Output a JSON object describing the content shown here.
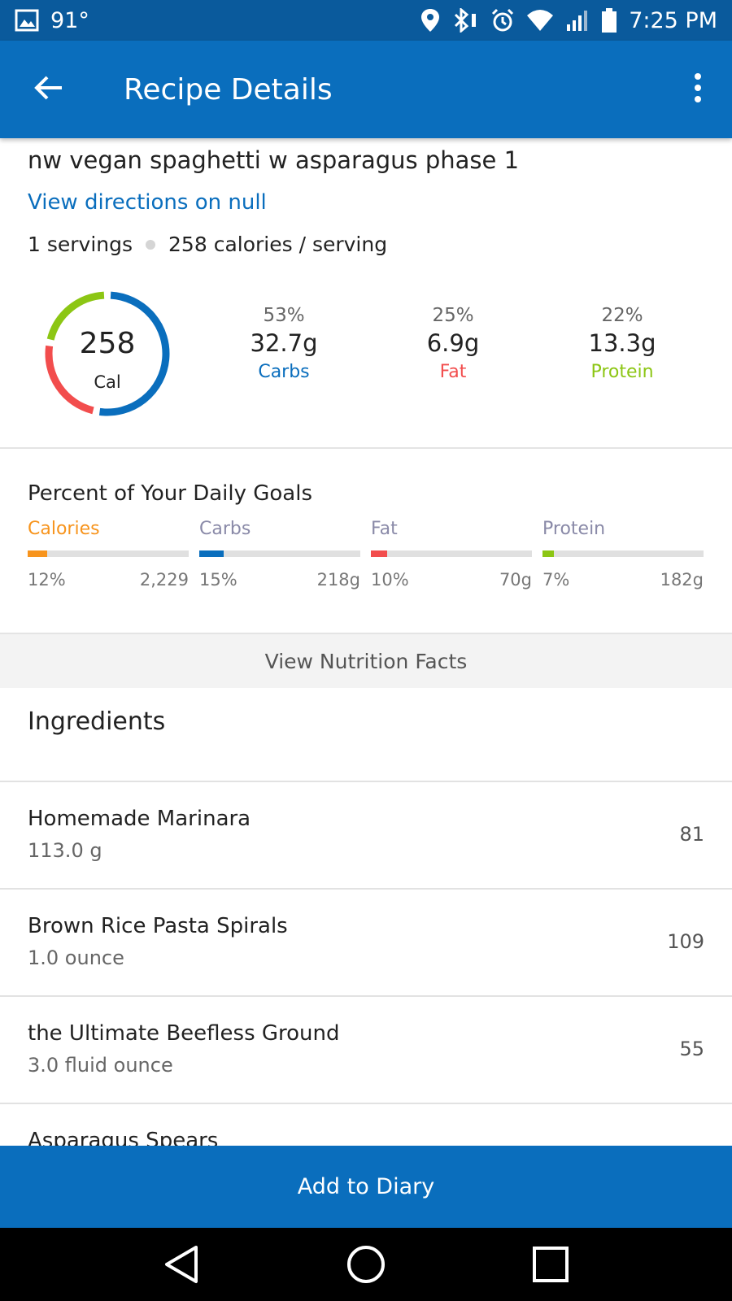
{
  "status_bar": {
    "temperature": "91°",
    "time": "7:25 PM",
    "icons": [
      "image-icon",
      "location-icon",
      "bluetooth-icon",
      "alarm-icon",
      "wifi-icon",
      "signal-icon",
      "battery-icon"
    ]
  },
  "app_bar": {
    "title": "Recipe Details",
    "back_icon": "arrow-left-icon",
    "menu_icon": "more-vert-icon"
  },
  "recipe": {
    "title": "nw vegan spaghetti w asparagus phase 1",
    "directions_link": "View directions on null",
    "servings": "1 servings",
    "calories_per_serving": "258 calories / serving"
  },
  "summary": {
    "calories_value": "258",
    "calories_unit": "Cal",
    "macros": [
      {
        "percent": "53%",
        "grams": "32.7g",
        "label": "Carbs",
        "color": "#0a6ebd",
        "fraction": 0.53
      },
      {
        "percent": "25%",
        "grams": "6.9g",
        "label": "Fat",
        "color": "#f24d4d",
        "fraction": 0.25
      },
      {
        "percent": "22%",
        "grams": "13.3g",
        "label": "Protein",
        "color": "#8cc614",
        "fraction": 0.22
      }
    ]
  },
  "daily_goals": {
    "title": "Percent of Your Daily Goals",
    "items": [
      {
        "label": "Calories",
        "percent": "12%",
        "goal": "2,229",
        "color": "#f7941d",
        "label_color": "#f7941d",
        "fraction": 0.12
      },
      {
        "label": "Carbs",
        "percent": "15%",
        "goal": "218g",
        "color": "#0a6ebd",
        "label_color": "#8a8aa8",
        "fraction": 0.15
      },
      {
        "label": "Fat",
        "percent": "10%",
        "goal": "70g",
        "color": "#f24d4d",
        "label_color": "#8a8aa8",
        "fraction": 0.1
      },
      {
        "label": "Protein",
        "percent": "7%",
        "goal": "182g",
        "color": "#8cc614",
        "label_color": "#8a8aa8",
        "fraction": 0.07
      }
    ]
  },
  "nutrition_button": "View Nutrition Facts",
  "ingredients": {
    "header": "Ingredients",
    "items": [
      {
        "name": "Homemade Marinara",
        "quantity": "113.0 g",
        "calories": "81"
      },
      {
        "name": "Brown Rice Pasta Spirals",
        "quantity": "1.0 ounce",
        "calories": "109"
      },
      {
        "name": "the Ultimate Beefless Ground",
        "quantity": "3.0 fluid ounce",
        "calories": "55"
      },
      {
        "name": "Asparagus Spears",
        "quantity": "",
        "calories": ""
      }
    ]
  },
  "add_button": "Add to Diary",
  "nav": {
    "icons": [
      "back-triangle-icon",
      "home-circle-icon",
      "recents-square-icon"
    ]
  }
}
